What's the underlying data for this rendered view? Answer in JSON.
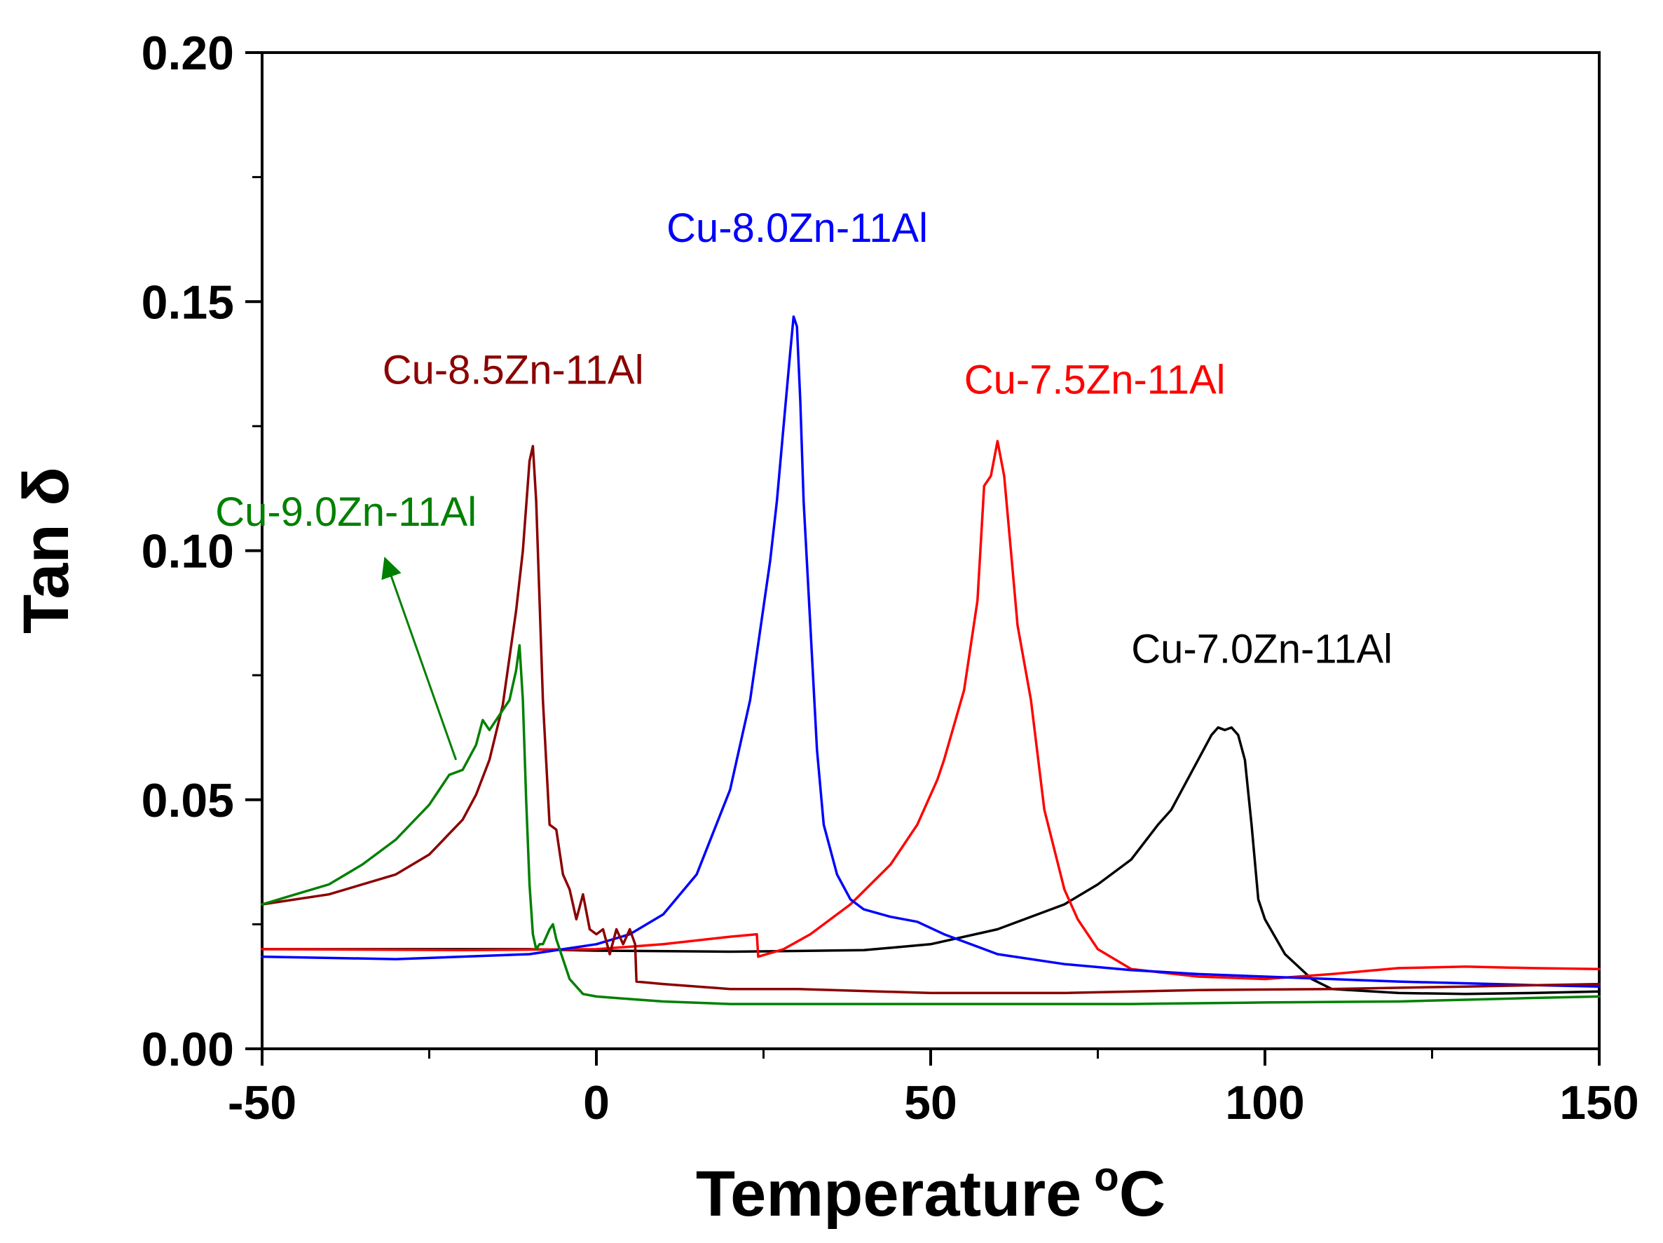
{
  "chart_data": {
    "type": "line",
    "xlabel": "Temperature",
    "xlabel_unit_sup": "o",
    "xlabel_unit": "C",
    "ylabel": "Tan δ",
    "xlim": [
      -50,
      150
    ],
    "ylim": [
      0,
      0.2
    ],
    "xticks": [
      -50,
      0,
      50,
      100,
      150
    ],
    "xtick_labels": [
      "-50",
      "0",
      "50",
      "100",
      "150"
    ],
    "yticks": [
      0,
      0.05,
      0.1,
      0.15,
      0.2
    ],
    "ytick_labels": [
      "0.00",
      "0.05",
      "0.10",
      "0.15",
      "0.20"
    ],
    "series": [
      {
        "name": "Cu-7.0Zn-11Al",
        "color": "#000000",
        "x": [
          -50,
          -30,
          -10,
          0,
          20,
          40,
          50,
          60,
          70,
          75,
          80,
          84,
          86,
          88,
          90,
          92,
          93,
          94,
          95,
          96,
          97,
          98,
          99,
          100,
          103,
          107,
          110,
          120,
          130,
          140,
          150
        ],
        "y": [
          0.02,
          0.02,
          0.02,
          0.0197,
          0.0195,
          0.0198,
          0.021,
          0.024,
          0.029,
          0.033,
          0.038,
          0.045,
          0.048,
          0.053,
          0.058,
          0.063,
          0.0645,
          0.064,
          0.0645,
          0.063,
          0.058,
          0.045,
          0.03,
          0.026,
          0.019,
          0.014,
          0.012,
          0.0112,
          0.011,
          0.0112,
          0.0115
        ]
      },
      {
        "name": "Cu-7.5Zn-11Al",
        "color": "#ff0000",
        "x": [
          -50,
          -20,
          0,
          10,
          20,
          24,
          24.2,
          28,
          32,
          38,
          44,
          48,
          51,
          52,
          55,
          57,
          58,
          59,
          60,
          61,
          62,
          63,
          65,
          67,
          70,
          72,
          75,
          80,
          90,
          100,
          110,
          120,
          130,
          140,
          150
        ],
        "y": [
          0.02,
          0.0198,
          0.02,
          0.021,
          0.0225,
          0.023,
          0.0185,
          0.02,
          0.023,
          0.029,
          0.037,
          0.045,
          0.054,
          0.058,
          0.072,
          0.09,
          0.113,
          0.115,
          0.122,
          0.115,
          0.1,
          0.085,
          0.07,
          0.048,
          0.032,
          0.026,
          0.02,
          0.016,
          0.0145,
          0.014,
          0.015,
          0.0162,
          0.0165,
          0.0162,
          0.016
        ]
      },
      {
        "name": "Cu-8.0Zn-11Al",
        "color": "#0000ff",
        "x": [
          -50,
          -30,
          -10,
          0,
          5,
          10,
          15,
          20,
          23,
          26,
          27,
          28,
          29,
          29.5,
          30,
          30.5,
          31,
          32,
          33,
          34,
          36,
          38,
          40,
          44,
          48,
          52,
          60,
          70,
          80,
          90,
          100,
          120,
          140,
          150
        ],
        "y": [
          0.0185,
          0.018,
          0.019,
          0.021,
          0.023,
          0.027,
          0.035,
          0.052,
          0.07,
          0.098,
          0.11,
          0.125,
          0.14,
          0.147,
          0.145,
          0.13,
          0.11,
          0.085,
          0.06,
          0.045,
          0.035,
          0.03,
          0.028,
          0.0265,
          0.0255,
          0.023,
          0.019,
          0.017,
          0.0158,
          0.015,
          0.0145,
          0.0135,
          0.0128,
          0.0125
        ]
      },
      {
        "name": "Cu-8.5Zn-11Al",
        "color": "#8b0000",
        "x": [
          -50,
          -40,
          -30,
          -25,
          -20,
          -18,
          -16,
          -14,
          -12,
          -11,
          -10,
          -9.5,
          -9,
          -8.5,
          -8,
          -7,
          -6,
          -5,
          -4,
          -3,
          -2,
          -1,
          0,
          1,
          2,
          3,
          4,
          5,
          5.8,
          6,
          10,
          20,
          30,
          50,
          70,
          90,
          110,
          130,
          150
        ],
        "y": [
          0.029,
          0.031,
          0.035,
          0.039,
          0.046,
          0.051,
          0.058,
          0.069,
          0.088,
          0.1,
          0.118,
          0.121,
          0.11,
          0.09,
          0.07,
          0.045,
          0.044,
          0.035,
          0.032,
          0.026,
          0.031,
          0.024,
          0.023,
          0.024,
          0.019,
          0.024,
          0.021,
          0.024,
          0.021,
          0.0135,
          0.013,
          0.012,
          0.012,
          0.0112,
          0.0112,
          0.0118,
          0.012,
          0.0125,
          0.013
        ]
      },
      {
        "name": "Cu-9.0Zn-11Al",
        "color": "#008000",
        "x": [
          -50,
          -45,
          -40,
          -35,
          -30,
          -25,
          -22,
          -20,
          -18,
          -17,
          -16,
          -15,
          -14,
          -13,
          -12,
          -11.5,
          -11,
          -10.5,
          -10,
          -9.5,
          -9,
          -8.5,
          -8,
          -7,
          -6.5,
          -6,
          -5,
          -4,
          -2,
          0,
          5,
          10,
          20,
          40,
          60,
          80,
          100,
          120,
          140,
          150
        ],
        "y": [
          0.029,
          0.031,
          0.033,
          0.037,
          0.042,
          0.049,
          0.055,
          0.056,
          0.061,
          0.066,
          0.064,
          0.066,
          0.068,
          0.07,
          0.076,
          0.081,
          0.07,
          0.05,
          0.033,
          0.023,
          0.02,
          0.021,
          0.021,
          0.024,
          0.025,
          0.022,
          0.018,
          0.014,
          0.011,
          0.0105,
          0.01,
          0.0095,
          0.009,
          0.009,
          0.009,
          0.009,
          0.0093,
          0.0095,
          0.0102,
          0.0105
        ]
      }
    ],
    "annotations": [
      {
        "text": "Cu-7.0Zn-11Al",
        "color": "#000000",
        "x": 80,
        "y": 0.0775
      },
      {
        "text": "Cu-7.5Zn-11Al",
        "color": "#ff0000",
        "x": 55,
        "y": 0.1315
      },
      {
        "text": "Cu-8.0Zn-11Al",
        "color": "#0000ff",
        "x": 10.5,
        "y": 0.162
      },
      {
        "text": "Cu-8.5Zn-11Al",
        "color": "#8b0000",
        "x": -32,
        "y": 0.1335
      },
      {
        "text": "Cu-9.0Zn-11Al",
        "color": "#008000",
        "x": -57,
        "y": 0.105
      }
    ],
    "arrow": {
      "color": "#008000",
      "from": [
        -21,
        0.058
      ],
      "to": [
        -31.5,
        0.098
      ]
    },
    "legend": "none",
    "grid": false
  }
}
